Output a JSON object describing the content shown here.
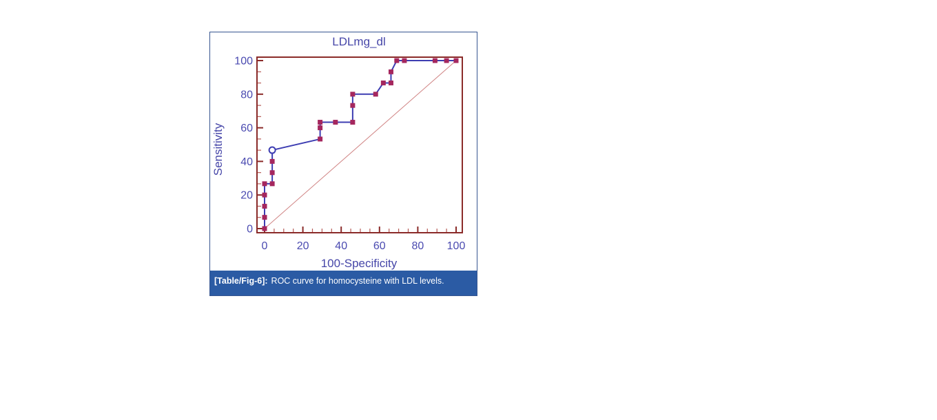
{
  "figure": {
    "caption_tag": "[Table/Fig-6]:",
    "caption_text": "ROC curve for homocysteine with LDL levels."
  },
  "chart_data": {
    "type": "line",
    "subtype": "roc-curve",
    "title": "LDLmg_dl",
    "xlabel": "100-Specificity",
    "ylabel": "Sensitivity",
    "xlim": [
      0,
      100
    ],
    "ylim": [
      0,
      100
    ],
    "x_ticks": [
      0,
      20,
      40,
      60,
      80,
      100
    ],
    "y_ticks": [
      0,
      20,
      40,
      60,
      80,
      100
    ],
    "x_minor_step": 5,
    "y_minor_divisions": 3,
    "grid": false,
    "legend": "none",
    "series": [
      {
        "name": "ROC curve",
        "marker": "filled-square",
        "points": [
          [
            0,
            0
          ],
          [
            0,
            6.7
          ],
          [
            0,
            13.3
          ],
          [
            0,
            20
          ],
          [
            0,
            26.7
          ],
          [
            4,
            26.7
          ],
          [
            4,
            33.3
          ],
          [
            4,
            40
          ],
          [
            4,
            46.7
          ],
          [
            29,
            53.3
          ],
          [
            29,
            60
          ],
          [
            29,
            63.3
          ],
          [
            37,
            63.3
          ],
          [
            46,
            63.3
          ],
          [
            46,
            73.3
          ],
          [
            46,
            80
          ],
          [
            58,
            80
          ],
          [
            62,
            86.7
          ],
          [
            66,
            86.7
          ],
          [
            66,
            93.3
          ],
          [
            69,
            100
          ],
          [
            73,
            100
          ],
          [
            89,
            100
          ],
          [
            95,
            100
          ],
          [
            100,
            100
          ]
        ]
      }
    ],
    "operating_point": {
      "x": 4,
      "y": 46.7,
      "marker": "open-circle"
    },
    "reference_line": {
      "from": [
        0,
        0
      ],
      "to": [
        100,
        100
      ],
      "style": "thin-diagonal"
    },
    "colors": {
      "axis_frame": "#8a2a28",
      "minor_tick": "#b65a55",
      "curve_line": "#3d3db2",
      "point_marker": "#a5275e",
      "reference_line": "#d08484",
      "label_text": "#4646a8",
      "caption_background": "#2b5ba4",
      "caption_text": "#ffffff",
      "figure_border": "#35548f"
    }
  }
}
